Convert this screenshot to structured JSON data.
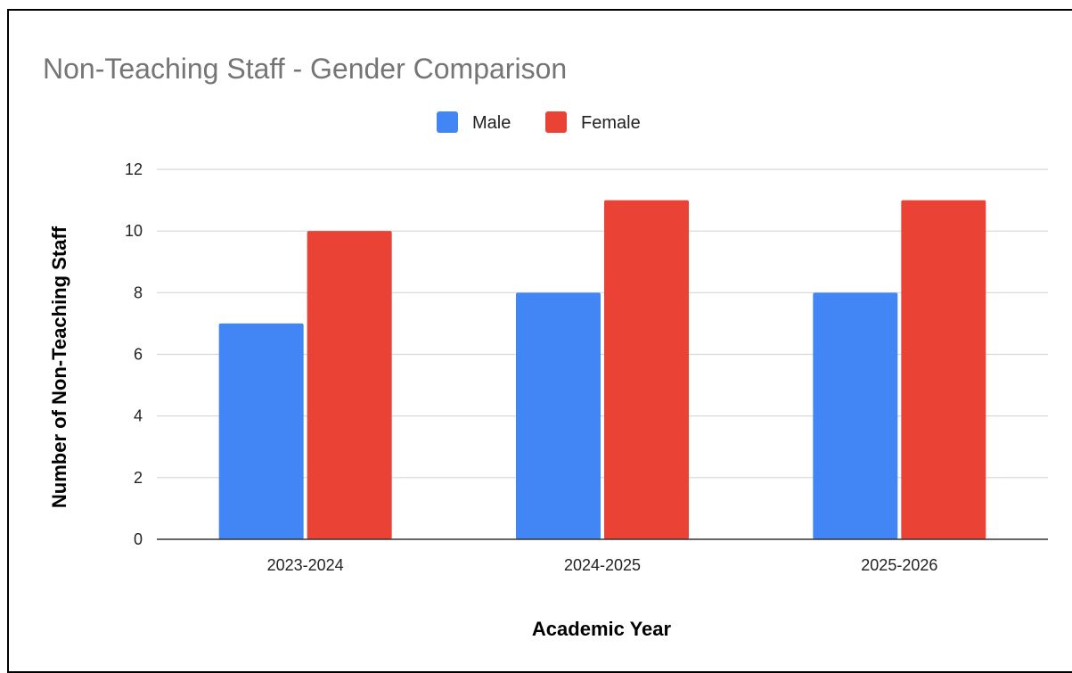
{
  "chart_data": {
    "type": "bar",
    "title": "Non-Teaching Staff - Gender Comparison",
    "xlabel": "Academic Year",
    "ylabel": "Number of Non-Teaching Staff",
    "categories": [
      "2023-2024",
      "2024-2025",
      "2025-2026"
    ],
    "series": [
      {
        "name": "Male",
        "color": "#4285F4",
        "values": [
          7,
          8,
          8
        ]
      },
      {
        "name": "Female",
        "color": "#EA4335",
        "values": [
          10,
          11,
          11
        ]
      }
    ],
    "ylim": [
      0,
      12
    ],
    "yticks": [
      0,
      2,
      4,
      6,
      8,
      10,
      12
    ],
    "grid": true,
    "legend_position": "top-center"
  }
}
